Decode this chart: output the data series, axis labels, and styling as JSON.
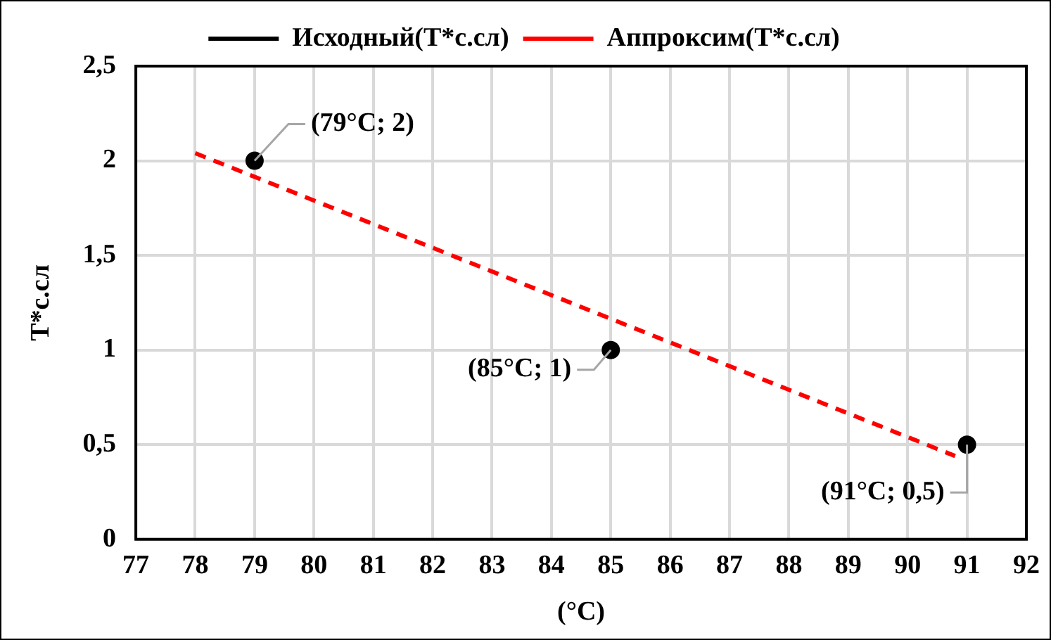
{
  "chart_data": {
    "type": "scatter",
    "xlabel": "(°C)",
    "ylabel": "T*с.сл",
    "xlim": [
      77,
      92
    ],
    "xticks": [
      77,
      78,
      79,
      80,
      81,
      82,
      83,
      84,
      85,
      86,
      87,
      88,
      89,
      90,
      91,
      92
    ],
    "ylim": [
      0,
      2.5
    ],
    "yticks": [
      {
        "value": 0,
        "label": "0"
      },
      {
        "value": 0.5,
        "label": "0,5"
      },
      {
        "value": 1,
        "label": "1"
      },
      {
        "value": 1.5,
        "label": "1,5"
      },
      {
        "value": 2,
        "label": "2"
      },
      {
        "value": 2.5,
        "label": "2,5"
      }
    ],
    "grid": true,
    "legend": "top",
    "series": [
      {
        "name": "Исходный(T*с.сл)",
        "color": "#000000",
        "marker": "circle",
        "x": [
          79,
          85,
          91
        ],
        "values": [
          2,
          1,
          0.5
        ]
      },
      {
        "name": "Аппроксим(T*с.сл)",
        "type": "line",
        "color": "#ff0000",
        "line_style": "dashed",
        "marker": "none",
        "x": [
          78,
          90.8
        ],
        "values": [
          2.04,
          0.44
        ]
      }
    ],
    "annotations": [
      {
        "text": "(79°C; 2)",
        "x": 79,
        "y": 2
      },
      {
        "text": "(85°C; 1)",
        "x": 85,
        "y": 1
      },
      {
        "text": "(91°C; 0,5)",
        "x": 91,
        "y": 0.5
      }
    ]
  }
}
